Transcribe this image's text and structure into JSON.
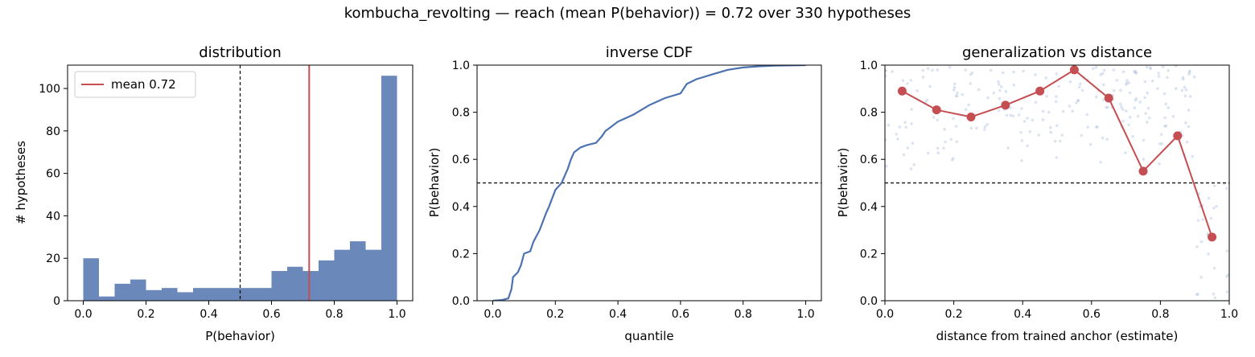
{
  "suptitle": "kombucha_revolting  —  reach (mean P(behavior)) = 0.72  over 330 hypotheses",
  "colors": {
    "bar": "#6a88ba",
    "line": "#4c72b0",
    "accent": "#c44e52",
    "scatter": "#b0c4de"
  },
  "chart_data": [
    {
      "type": "bar",
      "title": "distribution",
      "xlabel": "P(behavior)",
      "ylabel": "# hypotheses",
      "xlim": [
        -0.05,
        1.05
      ],
      "ylim": [
        0,
        111
      ],
      "xticks": [
        "0.0",
        "0.2",
        "0.4",
        "0.6",
        "0.8",
        "1.0"
      ],
      "yticks": [
        "0",
        "20",
        "40",
        "60",
        "80",
        "100"
      ],
      "bin_width": 0.05,
      "bin_starts": [
        0.0,
        0.05,
        0.1,
        0.15,
        0.2,
        0.25,
        0.3,
        0.35,
        0.4,
        0.45,
        0.5,
        0.55,
        0.6,
        0.65,
        0.7,
        0.75,
        0.8,
        0.85,
        0.9,
        0.95
      ],
      "values": [
        20,
        2,
        8,
        10,
        5,
        6,
        4,
        6,
        6,
        6,
        6,
        6,
        14,
        16,
        14,
        19,
        24,
        28,
        24,
        106
      ],
      "mean_line": 0.72,
      "threshold_line": 0.5,
      "legend": {
        "label": "mean 0.72",
        "position": "upper-left"
      }
    },
    {
      "type": "line",
      "title": "inverse CDF",
      "xlabel": "quantile",
      "ylabel": "P(behavior)",
      "xlim": [
        -0.05,
        1.05
      ],
      "ylim": [
        0,
        1
      ],
      "xticks": [
        "0.0",
        "0.2",
        "0.4",
        "0.6",
        "0.8",
        "1.0"
      ],
      "yticks": [
        "0.0",
        "0.2",
        "0.4",
        "0.6",
        "0.8",
        "1.0"
      ],
      "threshold_line": 0.5,
      "x": [
        0.0,
        0.03,
        0.05,
        0.06,
        0.065,
        0.08,
        0.09,
        0.1,
        0.12,
        0.13,
        0.15,
        0.17,
        0.18,
        0.2,
        0.22,
        0.24,
        0.25,
        0.26,
        0.28,
        0.3,
        0.33,
        0.35,
        0.36,
        0.38,
        0.4,
        0.45,
        0.5,
        0.55,
        0.6,
        0.62,
        0.65,
        0.7,
        0.75,
        0.8,
        0.85,
        0.9,
        1.0
      ],
      "y": [
        0.0,
        0.003,
        0.01,
        0.05,
        0.1,
        0.12,
        0.15,
        0.2,
        0.21,
        0.25,
        0.3,
        0.37,
        0.4,
        0.47,
        0.5,
        0.56,
        0.6,
        0.63,
        0.65,
        0.66,
        0.67,
        0.7,
        0.72,
        0.74,
        0.76,
        0.79,
        0.83,
        0.86,
        0.88,
        0.92,
        0.94,
        0.96,
        0.98,
        0.99,
        0.995,
        0.998,
        1.0
      ]
    },
    {
      "type": "scatter",
      "title": "generalization vs distance",
      "xlabel": "distance from trained anchor (estimate)",
      "ylabel": "P(behavior)",
      "xlim": [
        0,
        1
      ],
      "ylim": [
        0,
        1
      ],
      "xticks": [
        "0.0",
        "0.2",
        "0.4",
        "0.6",
        "0.8",
        "1.0"
      ],
      "yticks": [
        "0.0",
        "0.2",
        "0.4",
        "0.6",
        "0.8",
        "1.0"
      ],
      "threshold_line": 0.5,
      "series": [
        {
          "x": [
            0.05,
            0.15,
            0.25,
            0.35,
            0.45,
            0.55,
            0.65,
            0.75,
            0.85,
            0.95
          ],
          "y": [
            0.89,
            0.81,
            0.78,
            0.83,
            0.89,
            0.98,
            0.86,
            0.55,
            0.7,
            0.27
          ]
        }
      ]
    }
  ]
}
